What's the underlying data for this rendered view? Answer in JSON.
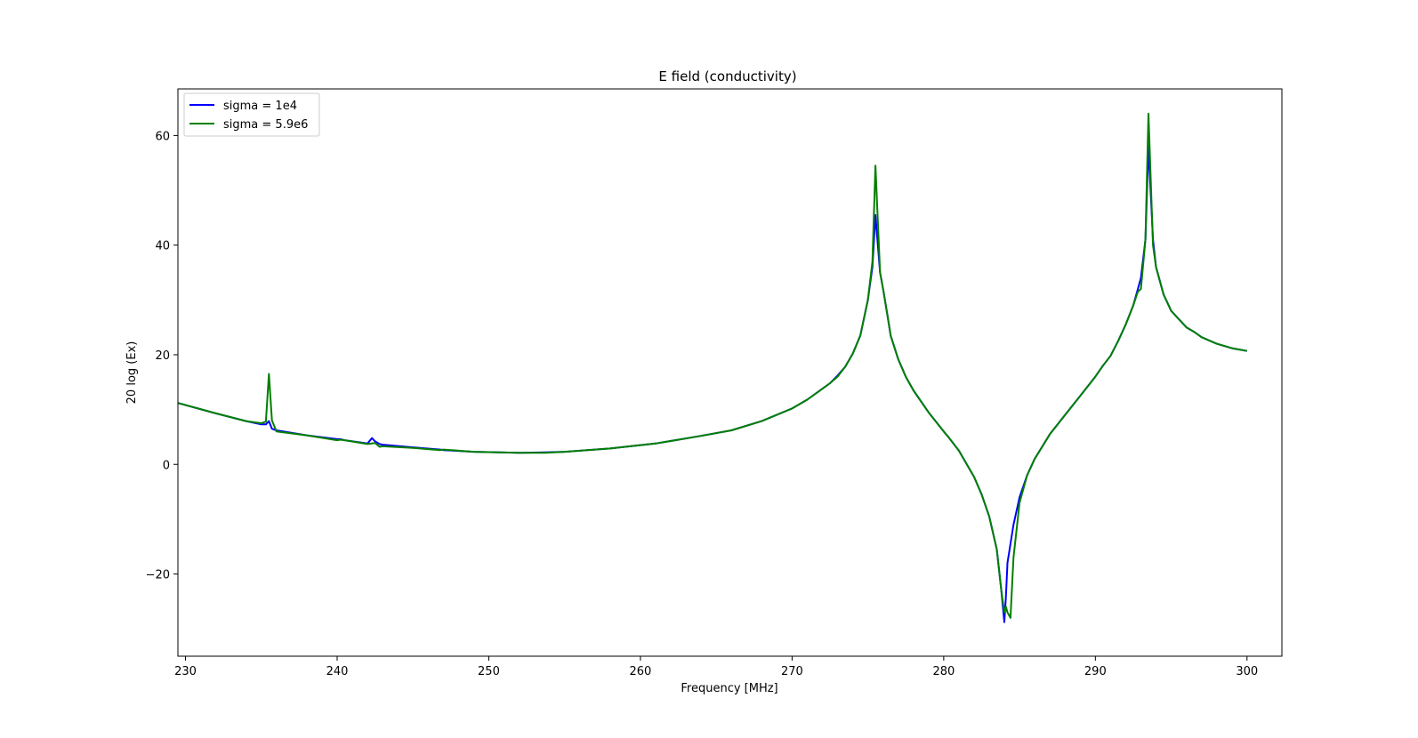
{
  "chart_data": {
    "type": "line",
    "title": "E field (conductivity)",
    "xlabel": "Frequency [MHz]",
    "ylabel": "20 log (Ex)",
    "xlim": [
      229.5,
      302.3
    ],
    "ylim": [
      -35,
      68.5
    ],
    "xticks": [
      230,
      240,
      250,
      260,
      270,
      280,
      290,
      300
    ],
    "yticks": [
      -20,
      0,
      20,
      40,
      60
    ],
    "xtick_labels": [
      "230",
      "240",
      "250",
      "260",
      "270",
      "280",
      "290",
      "300"
    ],
    "ytick_labels": [
      "−20",
      "0",
      "20",
      "40",
      "60"
    ],
    "grid": false,
    "legend_position": "upper-left",
    "series": [
      {
        "name": "sigma = 1e4",
        "color": "#0000ff",
        "x": [
          229.5,
          232,
          234,
          235,
          235.3,
          235.5,
          235.7,
          236,
          238,
          240,
          240.2,
          240.5,
          242,
          242.3,
          242.5,
          242.8,
          243,
          245,
          246.8,
          247,
          249,
          252,
          253.7,
          255,
          258,
          261,
          264,
          266,
          268,
          270,
          271,
          272,
          272.5,
          273,
          273.5,
          274,
          274.5,
          275,
          275.3,
          275.5,
          275.8,
          276,
          276.3,
          276.5,
          277,
          277.5,
          278,
          279,
          280,
          280.3,
          281,
          282,
          282.5,
          283,
          283.5,
          283.8,
          284,
          284.1,
          284.2,
          284.4,
          284.6,
          285,
          285.5,
          286,
          287,
          288,
          289,
          290,
          290.5,
          291,
          291.5,
          292,
          292.5,
          292.8,
          293,
          293.3,
          293.5,
          293.8,
          294,
          294.5,
          295,
          296,
          296.5,
          297,
          298,
          299,
          300
        ],
        "y": [
          11.2,
          9.3,
          7.9,
          7.3,
          7.3,
          7.9,
          6.5,
          6.2,
          5.3,
          4.6,
          4.6,
          4.4,
          3.8,
          4.8,
          4.2,
          3.7,
          3.6,
          3.1,
          2.7,
          2.6,
          2.3,
          2.1,
          2.2,
          2.3,
          2.9,
          3.8,
          5.2,
          6.2,
          7.9,
          10.2,
          11.8,
          13.8,
          14.8,
          16.2,
          17.8,
          20.2,
          23.5,
          30,
          36,
          45.5,
          35,
          32,
          27,
          23.5,
          19.2,
          16,
          13.5,
          9.5,
          6,
          5,
          2.5,
          -2.3,
          -5.5,
          -9.5,
          -15.5,
          -23,
          -28.8,
          -24,
          -18,
          -14.5,
          -11,
          -6,
          -2,
          1,
          5.5,
          9,
          12.5,
          16,
          18,
          19.8,
          22.5,
          25.5,
          29,
          32,
          34,
          41,
          58,
          41,
          36,
          31,
          28,
          25,
          24.2,
          23.2,
          22,
          21.2,
          20.7
        ]
      },
      {
        "name": "sigma = 5.9e6",
        "color": "#008000",
        "x": [
          229.5,
          232,
          234,
          235,
          235.3,
          235.5,
          235.7,
          236,
          238,
          240,
          240.2,
          240.5,
          242,
          242.5,
          242.8,
          243,
          245,
          246.8,
          247,
          249,
          252,
          253.7,
          255,
          258,
          261,
          264,
          266,
          268,
          270,
          271,
          272,
          272.5,
          273,
          273.5,
          274,
          274.5,
          275,
          275.3,
          275.5,
          275.8,
          276,
          276.3,
          276.5,
          277,
          277.5,
          278,
          279,
          280,
          280.3,
          281,
          282,
          282.5,
          283,
          283.5,
          283.8,
          284,
          284.1,
          284.2,
          284.4,
          284.6,
          285,
          285.5,
          286,
          287,
          288,
          289,
          290,
          290.5,
          291,
          291.5,
          292,
          292.5,
          292.8,
          293,
          293.3,
          293.5,
          293.8,
          294,
          294.5,
          295,
          296,
          296.5,
          297,
          298,
          299,
          300
        ],
        "y": [
          11.2,
          9.3,
          7.9,
          7.5,
          7.8,
          16.5,
          8,
          6,
          5.3,
          4.4,
          4.5,
          4.4,
          3.7,
          3.9,
          3.2,
          3.3,
          3,
          2.6,
          2.7,
          2.3,
          2.1,
          2.1,
          2.3,
          2.9,
          3.8,
          5.2,
          6.2,
          7.9,
          10.2,
          11.8,
          13.8,
          14.8,
          16,
          17.8,
          20.2,
          23.5,
          30,
          37,
          54.5,
          35,
          32,
          27,
          23.5,
          19.2,
          16,
          13.5,
          9.5,
          6,
          5,
          2.5,
          -2.3,
          -5.5,
          -9.5,
          -15.5,
          -23,
          -27,
          -26,
          -27,
          -28,
          -17,
          -7,
          -2,
          1,
          5.5,
          9,
          12.5,
          16,
          18,
          19.8,
          22.5,
          25.5,
          29,
          31.5,
          32,
          41,
          64,
          40,
          36,
          31,
          28,
          25,
          24.2,
          23.2,
          22,
          21.2,
          20.7
        ]
      }
    ]
  }
}
